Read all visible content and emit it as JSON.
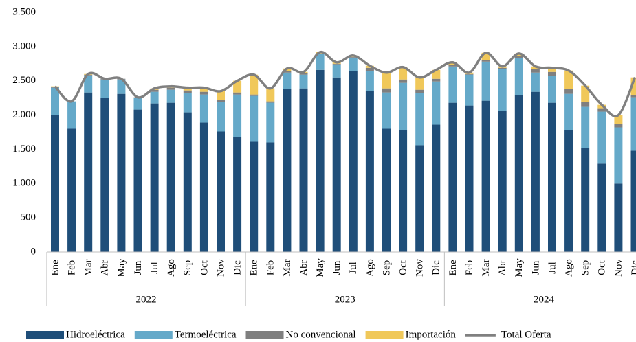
{
  "chart_data": {
    "type": "bar",
    "categories": [
      "Ene",
      "Feb",
      "Mar",
      "Abr",
      "May",
      "Jun",
      "Jul",
      "Ago",
      "Sep",
      "Oct",
      "Nov",
      "Dic",
      "Ene",
      "Feb",
      "Mar",
      "Abr",
      "May",
      "Jun",
      "Jul",
      "Ago",
      "Sep",
      "Oct",
      "Nov",
      "Dic",
      "Ene",
      "Feb",
      "Mar",
      "Abr",
      "May",
      "Jun",
      "Jul",
      "Ago",
      "Sep",
      "Oct",
      "Nov",
      "Dic"
    ],
    "groups": [
      "2022",
      "2023",
      "2024"
    ],
    "stacked": true,
    "series": [
      {
        "name": "Hidroeléctrica",
        "color": "#1f4e79",
        "values": [
          2000,
          1800,
          2330,
          2250,
          2310,
          2080,
          2170,
          2180,
          2040,
          1890,
          1760,
          1680,
          1610,
          1600,
          2380,
          2390,
          2660,
          2550,
          2640,
          2350,
          1800,
          1780,
          1560,
          1860,
          2180,
          2140,
          2210,
          2060,
          2290,
          2340,
          2180,
          1780,
          1520,
          1290,
          1000,
          1480
        ]
      },
      {
        "name": "Termoeléctrica",
        "color": "#65a9c9",
        "values": [
          400,
          400,
          250,
          270,
          210,
          170,
          170,
          190,
          280,
          410,
          430,
          620,
          670,
          580,
          240,
          200,
          230,
          190,
          200,
          290,
          530,
          690,
          760,
          630,
          530,
          450,
          570,
          610,
          540,
          280,
          390,
          530,
          600,
          760,
          820,
          780
        ]
      },
      {
        "name": "No convencional",
        "color": "#7f7f7f",
        "values": [
          10,
          0,
          10,
          10,
          10,
          10,
          30,
          30,
          40,
          40,
          30,
          30,
          20,
          20,
          20,
          20,
          10,
          10,
          10,
          50,
          60,
          50,
          50,
          40,
          20,
          10,
          20,
          20,
          30,
          50,
          60,
          70,
          70,
          50,
          50,
          30
        ]
      },
      {
        "name": "Importación",
        "color": "#f0c85a",
        "values": [
          10,
          0,
          10,
          0,
          0,
          0,
          20,
          20,
          40,
          60,
          130,
          170,
          290,
          190,
          40,
          20,
          20,
          20,
          20,
          30,
          230,
          180,
          180,
          130,
          40,
          20,
          110,
          20,
          40,
          40,
          60,
          270,
          240,
          50,
          130,
          260
        ]
      },
      {
        "name": "Total Oferta",
        "color": "#808080",
        "type": "line",
        "values": [
          2420,
          2200,
          2600,
          2530,
          2530,
          2260,
          2390,
          2420,
          2400,
          2400,
          2350,
          2500,
          2590,
          2390,
          2680,
          2630,
          2920,
          2770,
          2870,
          2720,
          2620,
          2700,
          2550,
          2660,
          2770,
          2620,
          2910,
          2710,
          2900,
          2710,
          2690,
          2650,
          2430,
          2150,
          2000,
          2550
        ]
      }
    ],
    "ylim": [
      0,
      3500
    ],
    "yticks": [
      0,
      500,
      {
        "value": 1000,
        "label": "1.000"
      },
      {
        "value": 1500,
        "label": "1.500"
      },
      {
        "value": 2000,
        "label": "2.000"
      },
      {
        "value": 2500,
        "label": "2.500"
      },
      {
        "value": 3000,
        "label": "3.000"
      },
      {
        "value": 3500,
        "label": "3.500"
      }
    ],
    "grid": false,
    "legend": "bottom"
  }
}
